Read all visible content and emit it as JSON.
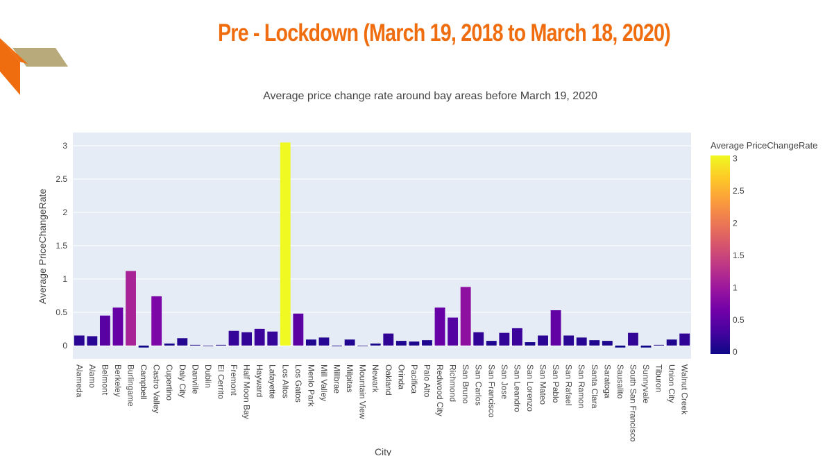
{
  "slide": {
    "title": "Pre - Lockdown (March 19, 2018 to March 18, 2020)"
  },
  "chart_data": {
    "type": "bar",
    "title": "Average price change rate around bay areas before March 19, 2020",
    "xlabel": "City",
    "ylabel": "Average PriceChangeRate",
    "ylim": [
      -0.2,
      3.2
    ],
    "yticks": [
      0,
      0.5,
      1,
      1.5,
      2,
      2.5,
      3
    ],
    "ytick_labels": [
      "0",
      "0.5",
      "1",
      "1.5",
      "2",
      "2.5",
      "3"
    ],
    "grid": true,
    "colorbar": {
      "title": "Average PriceChangeRate",
      "range": [
        -0.03,
        3.05
      ],
      "ticks": [
        0,
        0.5,
        1,
        1.5,
        2,
        2.5,
        3
      ],
      "tick_labels": [
        "0",
        "0.5",
        "1",
        "1.5",
        "2",
        "2.5",
        "3"
      ],
      "colorscale": [
        "#0d0887",
        "#46039f",
        "#7201a8",
        "#9c179e",
        "#bd3786",
        "#d8576b",
        "#ed7953",
        "#fb9f3a",
        "#fdca26",
        "#f0f921"
      ]
    },
    "categories": [
      "Alameda",
      "Alamo",
      "Belmont",
      "Berkeley",
      "Burlingame",
      "Campbell",
      "Castro Valley",
      "Cupertino",
      "Daly City",
      "Danville",
      "Dublin",
      "El Cerrito",
      "Fremont",
      "Half Moon Bay",
      "Hayward",
      "Lafayette",
      "Los Altos",
      "Los Gatos",
      "Menlo Park",
      "Mill Valley",
      "Millbrae",
      "Milpitas",
      "Mountain View",
      "Newark",
      "Oakland",
      "Orinda",
      "Pacifica",
      "Palo Alto",
      "Redwood City",
      "Richmond",
      "San Bruno",
      "San Carlos",
      "San Francisco",
      "San Jose",
      "San Leandro",
      "San Lorenzo",
      "San Mateo",
      "San Pablo",
      "San Rafael",
      "San Ramon",
      "Santa Clara",
      "Saratoga",
      "Sausalito",
      "South San Francisco",
      "Sunnyvale",
      "Tiburon",
      "Union City",
      "Walnut Creek"
    ],
    "values": [
      0.15,
      0.14,
      0.45,
      0.57,
      1.12,
      -0.03,
      0.74,
      0.03,
      0.11,
      0.01,
      0.0,
      0.01,
      0.22,
      0.2,
      0.25,
      0.21,
      3.05,
      0.48,
      0.09,
      0.12,
      -0.01,
      0.09,
      0.0,
      0.03,
      0.18,
      0.07,
      0.06,
      0.08,
      0.57,
      0.42,
      0.88,
      0.2,
      0.07,
      0.19,
      0.26,
      0.05,
      0.15,
      0.53,
      0.15,
      0.12,
      0.08,
      0.07,
      -0.03,
      0.19,
      -0.03,
      0.01,
      0.09,
      0.18
    ]
  }
}
